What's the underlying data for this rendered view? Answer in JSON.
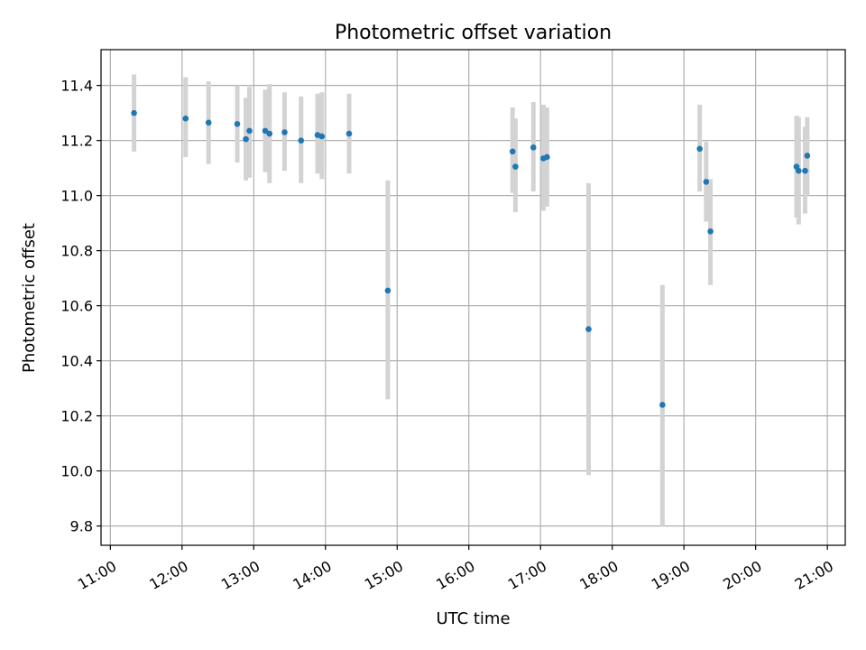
{
  "chart_data": {
    "type": "scatter",
    "title": "Photometric offset variation",
    "xlabel": "UTC time",
    "ylabel": "Photometric offset",
    "x_unit": "hours UTC",
    "xlim": [
      10.87,
      21.25
    ],
    "ylim": [
      9.73,
      11.53
    ],
    "x_ticks": [
      11,
      12,
      13,
      14,
      15,
      16,
      17,
      18,
      19,
      20,
      21
    ],
    "x_tick_labels": [
      "11:00",
      "12:00",
      "13:00",
      "14:00",
      "15:00",
      "16:00",
      "17:00",
      "18:00",
      "19:00",
      "20:00",
      "21:00"
    ],
    "y_ticks": [
      9.8,
      10.0,
      10.2,
      10.4,
      10.6,
      10.8,
      11.0,
      11.2,
      11.4
    ],
    "y_tick_labels": [
      "9.8",
      "10.0",
      "10.2",
      "10.4",
      "10.6",
      "10.8",
      "11.0",
      "11.2",
      "11.4"
    ],
    "grid": true,
    "marker_color": "#1f77b4",
    "errorbar_color": "#d3d3d3",
    "series": [
      {
        "points": [
          {
            "x": 11.33,
            "y": 11.3,
            "lo": 11.16,
            "hi": 11.44
          },
          {
            "x": 12.05,
            "y": 11.28,
            "lo": 11.14,
            "hi": 11.43
          },
          {
            "x": 12.37,
            "y": 11.265,
            "lo": 11.115,
            "hi": 11.415
          },
          {
            "x": 12.77,
            "y": 11.26,
            "lo": 11.12,
            "hi": 11.4
          },
          {
            "x": 12.89,
            "y": 11.205,
            "lo": 11.055,
            "hi": 11.355
          },
          {
            "x": 12.94,
            "y": 11.235,
            "lo": 11.065,
            "hi": 11.395
          },
          {
            "x": 13.16,
            "y": 11.235,
            "lo": 11.085,
            "hi": 11.385
          },
          {
            "x": 13.22,
            "y": 11.225,
            "lo": 11.045,
            "hi": 11.405
          },
          {
            "x": 13.43,
            "y": 11.23,
            "lo": 11.09,
            "hi": 11.375
          },
          {
            "x": 13.66,
            "y": 11.2,
            "lo": 11.045,
            "hi": 11.36
          },
          {
            "x": 13.89,
            "y": 11.22,
            "lo": 11.08,
            "hi": 11.37
          },
          {
            "x": 13.95,
            "y": 11.215,
            "lo": 11.06,
            "hi": 11.375
          },
          {
            "x": 14.33,
            "y": 11.225,
            "lo": 11.08,
            "hi": 11.37
          },
          {
            "x": 14.87,
            "y": 10.655,
            "lo": 10.26,
            "hi": 11.055
          },
          {
            "x": 16.61,
            "y": 11.16,
            "lo": 11.01,
            "hi": 11.32
          },
          {
            "x": 16.65,
            "y": 11.105,
            "lo": 10.94,
            "hi": 11.28
          },
          {
            "x": 16.9,
            "y": 11.175,
            "lo": 11.015,
            "hi": 11.34
          },
          {
            "x": 17.04,
            "y": 11.135,
            "lo": 10.945,
            "hi": 11.33
          },
          {
            "x": 17.09,
            "y": 11.14,
            "lo": 10.96,
            "hi": 11.32
          },
          {
            "x": 17.67,
            "y": 10.515,
            "lo": 9.985,
            "hi": 11.045
          },
          {
            "x": 18.7,
            "y": 10.24,
            "lo": 9.8,
            "hi": 10.675
          },
          {
            "x": 19.22,
            "y": 11.17,
            "lo": 11.015,
            "hi": 11.33
          },
          {
            "x": 19.31,
            "y": 11.05,
            "lo": 10.905,
            "hi": 11.195
          },
          {
            "x": 19.37,
            "y": 10.87,
            "lo": 10.675,
            "hi": 11.06
          },
          {
            "x": 20.57,
            "y": 11.105,
            "lo": 10.92,
            "hi": 11.29
          },
          {
            "x": 20.6,
            "y": 11.09,
            "lo": 10.895,
            "hi": 11.285
          },
          {
            "x": 20.69,
            "y": 11.09,
            "lo": 10.935,
            "hi": 11.25
          },
          {
            "x": 20.72,
            "y": 11.145,
            "lo": 11.0,
            "hi": 11.285
          }
        ]
      }
    ]
  }
}
